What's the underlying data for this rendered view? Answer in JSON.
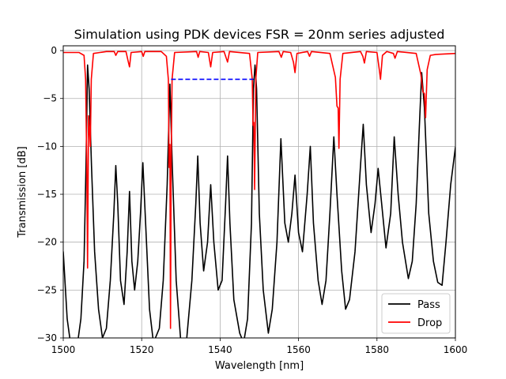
{
  "chart_data": {
    "type": "line",
    "title": "Simulation using PDK devices FSR = 20nm series adjusted",
    "xlabel": "Wavelength [nm]",
    "ylabel": "Transmission [dB]",
    "xlim": [
      1500,
      1600
    ],
    "ylim": [
      -30,
      0.5
    ],
    "xticks": [
      1500,
      1520,
      1540,
      1560,
      1580,
      1600
    ],
    "yticks": [
      0,
      -5,
      -10,
      -15,
      -20,
      -25,
      -30
    ],
    "grid": true,
    "legend_position": "lower-right",
    "series": [
      {
        "name": "Pass",
        "color": "#000000",
        "points": [
          [
            1500,
            -21
          ],
          [
            1501,
            -28
          ],
          [
            1502,
            -31
          ],
          [
            1503.5,
            -31
          ],
          [
            1504.5,
            -28
          ],
          [
            1505.3,
            -22
          ],
          [
            1505.8,
            -12
          ],
          [
            1506.2,
            -1.5
          ],
          [
            1506.6,
            -4
          ],
          [
            1507.2,
            -12
          ],
          [
            1508,
            -21
          ],
          [
            1509,
            -27
          ],
          [
            1510,
            -30
          ],
          [
            1511,
            -29
          ],
          [
            1512,
            -24
          ],
          [
            1512.9,
            -17
          ],
          [
            1513.4,
            -12
          ],
          [
            1513.9,
            -16
          ],
          [
            1514.6,
            -24
          ],
          [
            1515.5,
            -26.5
          ],
          [
            1516.3,
            -21
          ],
          [
            1516.9,
            -14.7
          ],
          [
            1517.5,
            -22
          ],
          [
            1518.2,
            -25
          ],
          [
            1519,
            -22
          ],
          [
            1519.7,
            -17
          ],
          [
            1520.3,
            -11.7
          ],
          [
            1521,
            -18
          ],
          [
            1522,
            -27
          ],
          [
            1523,
            -30.5
          ],
          [
            1524.5,
            -29
          ],
          [
            1525.5,
            -24
          ],
          [
            1526.5,
            -14
          ],
          [
            1527.2,
            -3.5
          ],
          [
            1527.8,
            -12
          ],
          [
            1528.8,
            -24
          ],
          [
            1530,
            -30.5
          ],
          [
            1531.5,
            -30
          ],
          [
            1532.8,
            -24
          ],
          [
            1533.8,
            -16
          ],
          [
            1534.3,
            -11
          ],
          [
            1534.9,
            -18
          ],
          [
            1535.8,
            -23
          ],
          [
            1536.8,
            -20
          ],
          [
            1537.6,
            -14
          ],
          [
            1538.4,
            -20
          ],
          [
            1539.5,
            -25
          ],
          [
            1540.5,
            -24
          ],
          [
            1541.4,
            -16
          ],
          [
            1541.9,
            -11
          ],
          [
            1542.5,
            -18
          ],
          [
            1543.5,
            -26
          ],
          [
            1545,
            -29.5
          ],
          [
            1546,
            -30.5
          ],
          [
            1547,
            -28
          ],
          [
            1548,
            -18
          ],
          [
            1548.5,
            -4
          ],
          [
            1548.9,
            -1.5
          ],
          [
            1549.3,
            -4
          ],
          [
            1550,
            -17
          ],
          [
            1551,
            -25
          ],
          [
            1552.3,
            -29.5
          ],
          [
            1553.3,
            -27
          ],
          [
            1554.5,
            -20
          ],
          [
            1555.5,
            -9.2
          ],
          [
            1556.5,
            -18
          ],
          [
            1557.4,
            -20
          ],
          [
            1558.3,
            -17
          ],
          [
            1559.1,
            -13
          ],
          [
            1560,
            -19
          ],
          [
            1561,
            -21
          ],
          [
            1562.2,
            -15
          ],
          [
            1563,
            -10
          ],
          [
            1563.8,
            -18
          ],
          [
            1565,
            -24
          ],
          [
            1566,
            -26.5
          ],
          [
            1567,
            -24
          ],
          [
            1568,
            -17
          ],
          [
            1569,
            -9
          ],
          [
            1569.8,
            -15
          ],
          [
            1571,
            -23
          ],
          [
            1572,
            -27
          ],
          [
            1573,
            -26
          ],
          [
            1574.4,
            -21
          ],
          [
            1575.8,
            -12
          ],
          [
            1576.5,
            -7.7
          ],
          [
            1577.3,
            -14
          ],
          [
            1578.5,
            -19
          ],
          [
            1579.5,
            -16
          ],
          [
            1580.3,
            -12.3
          ],
          [
            1581.2,
            -16
          ],
          [
            1582.3,
            -20.6
          ],
          [
            1583.5,
            -17
          ],
          [
            1584.4,
            -9
          ],
          [
            1585.4,
            -15
          ],
          [
            1586.5,
            -20
          ],
          [
            1588,
            -23.8
          ],
          [
            1589,
            -22
          ],
          [
            1590,
            -16
          ],
          [
            1590.8,
            -8
          ],
          [
            1591.4,
            -2.3
          ],
          [
            1592.1,
            -6
          ],
          [
            1593.2,
            -17
          ],
          [
            1594.4,
            -22
          ],
          [
            1595.5,
            -24.2
          ],
          [
            1596.6,
            -24.5
          ],
          [
            1597.6,
            -20
          ],
          [
            1598.8,
            -14
          ],
          [
            1600,
            -10.1
          ]
        ]
      },
      {
        "name": "Drop",
        "color": "#ff0000",
        "points": [
          [
            1500,
            -0.2
          ],
          [
            1504,
            -0.2
          ],
          [
            1505.3,
            -0.5
          ],
          [
            1505.7,
            -3
          ],
          [
            1506,
            -12
          ],
          [
            1506.2,
            -22.7
          ],
          [
            1506.45,
            -6.8
          ],
          [
            1506.65,
            -8
          ],
          [
            1506.9,
            -10
          ],
          [
            1507.15,
            -3
          ],
          [
            1507.7,
            -0.3
          ],
          [
            1511,
            -0.1
          ],
          [
            1513,
            -0.1
          ],
          [
            1513.4,
            -0.5
          ],
          [
            1513.9,
            -0.1
          ],
          [
            1516,
            -0.1
          ],
          [
            1516.6,
            -1.2
          ],
          [
            1516.9,
            -1.7
          ],
          [
            1517.3,
            -0.2
          ],
          [
            1520,
            -0.1
          ],
          [
            1520.4,
            -0.6
          ],
          [
            1520.8,
            -0.1
          ],
          [
            1525,
            -0.1
          ],
          [
            1526.3,
            -0.6
          ],
          [
            1526.8,
            -3
          ],
          [
            1527,
            -12.2
          ],
          [
            1527.2,
            -9.8
          ],
          [
            1527.35,
            -29
          ],
          [
            1527.5,
            -12.3
          ],
          [
            1527.75,
            -3
          ],
          [
            1528.4,
            -0.2
          ],
          [
            1534,
            -0.1
          ],
          [
            1534.4,
            -0.7
          ],
          [
            1534.8,
            -0.1
          ],
          [
            1537,
            -0.2
          ],
          [
            1537.6,
            -1.7
          ],
          [
            1538.1,
            -0.2
          ],
          [
            1541,
            -0.1
          ],
          [
            1541.9,
            -1.2
          ],
          [
            1542.4,
            -0.1
          ],
          [
            1547.5,
            -0.3
          ],
          [
            1548.2,
            -3
          ],
          [
            1548.4,
            -7.8
          ],
          [
            1548.6,
            -7.5
          ],
          [
            1548.8,
            -14.5
          ],
          [
            1549.1,
            -3
          ],
          [
            1549.6,
            -0.2
          ],
          [
            1555,
            -0.1
          ],
          [
            1555.6,
            -0.7
          ],
          [
            1556.1,
            -0.1
          ],
          [
            1558,
            -0.2
          ],
          [
            1558.7,
            -1.2
          ],
          [
            1559.1,
            -2.3
          ],
          [
            1559.6,
            -0.3
          ],
          [
            1562.3,
            -0.1
          ],
          [
            1562.8,
            -0.6
          ],
          [
            1563.3,
            -0.1
          ],
          [
            1568,
            -0.3
          ],
          [
            1569.4,
            -2.8
          ],
          [
            1569.8,
            -5.8
          ],
          [
            1570.1,
            -6
          ],
          [
            1570.3,
            -10.2
          ],
          [
            1570.6,
            -3
          ],
          [
            1571.3,
            -0.3
          ],
          [
            1575.8,
            -0.1
          ],
          [
            1576.4,
            -0.6
          ],
          [
            1576.8,
            -1.3
          ],
          [
            1577.3,
            -0.1
          ],
          [
            1580,
            -0.2
          ],
          [
            1580.6,
            -2
          ],
          [
            1580.9,
            -3
          ],
          [
            1581.4,
            -0.5
          ],
          [
            1582.5,
            -0.1
          ],
          [
            1584.2,
            -0.3
          ],
          [
            1584.6,
            -0.8
          ],
          [
            1585.2,
            -0.1
          ],
          [
            1590,
            -0.3
          ],
          [
            1591.2,
            -2.5
          ],
          [
            1591.7,
            -4.3
          ],
          [
            1592.1,
            -4.5
          ],
          [
            1592.4,
            -7
          ],
          [
            1592.8,
            -2
          ],
          [
            1593.6,
            -0.5
          ],
          [
            1595,
            -0.4
          ],
          [
            1600,
            -0.3
          ]
        ]
      },
      {
        "name": "",
        "color": "#0000ff",
        "dashed": true,
        "points": [
          [
            1527.5,
            -3
          ],
          [
            1548.5,
            -3
          ]
        ]
      }
    ]
  }
}
